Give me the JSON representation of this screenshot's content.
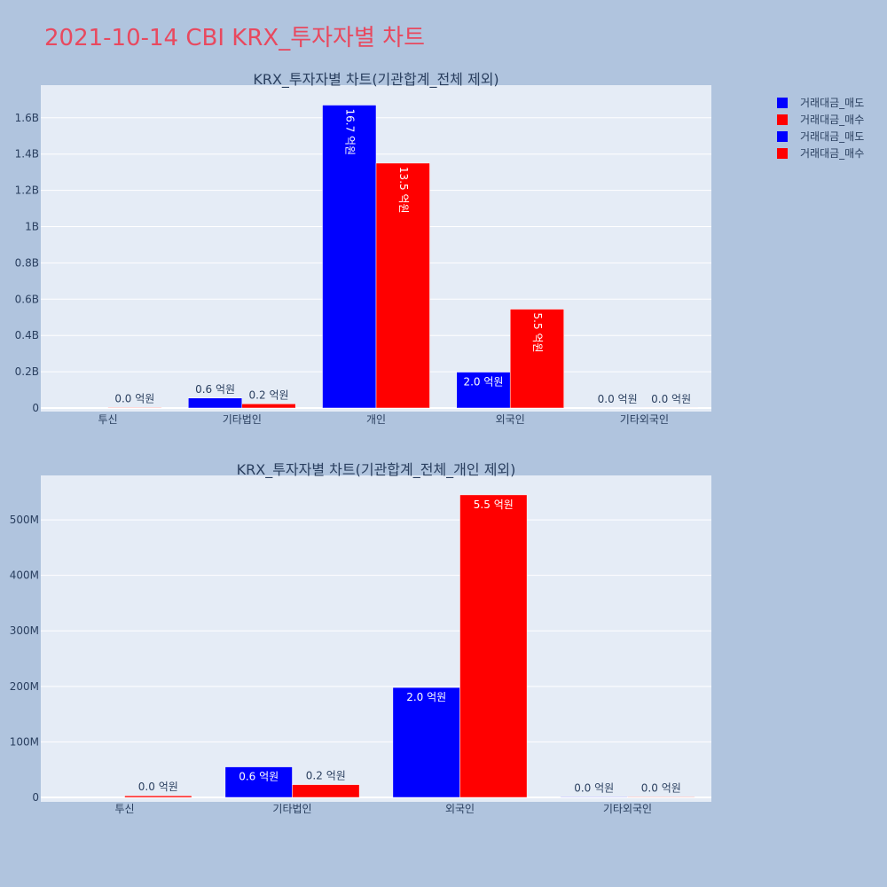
{
  "title": "2021-10-14 CBI KRX_투자자별 차트",
  "colors": {
    "sell": "#0000ff",
    "buy": "#ff0000",
    "title": "#e8495f",
    "plot_bg": "#e5ecf6"
  },
  "legend": [
    {
      "label": "거래대금_매도",
      "color": "#0000ff"
    },
    {
      "label": "거래대금_매수",
      "color": "#ff0000"
    },
    {
      "label": "거래대금_매도",
      "color": "#0000ff"
    },
    {
      "label": "거래대금_매수",
      "color": "#ff0000"
    }
  ],
  "chart_data": [
    {
      "type": "bar",
      "title": "KRX_투자자별 차트(기관합계_전체 제외)",
      "categories": [
        "투신",
        "기타법인",
        "개인",
        "외국인",
        "기타외국인"
      ],
      "series": [
        {
          "name": "거래대금_매도",
          "color": "#0000ff",
          "values": [
            0,
            55000000,
            1670000000,
            198000000,
            1000000
          ],
          "labels": [
            "",
            "0.6 억원",
            "16.7 억원",
            "2.0 억원",
            "0.0 억원"
          ]
        },
        {
          "name": "거래대금_매수",
          "color": "#ff0000",
          "values": [
            3000000,
            23000000,
            1350000000,
            545000000,
            1000000
          ],
          "labels": [
            "0.0 억원",
            "0.2 억원",
            "13.5 억원",
            "5.5 억원",
            "0.0 억원"
          ]
        }
      ],
      "yticks": [
        "0",
        "0.2B",
        "0.4B",
        "0.6B",
        "0.8B",
        "1B",
        "1.2B",
        "1.4B",
        "1.6B"
      ],
      "ylim": [
        0,
        1780000000
      ]
    },
    {
      "type": "bar",
      "title": "KRX_투자자별 차트(기관합계_전체_개인 제외)",
      "categories": [
        "투신",
        "기타법인",
        "외국인",
        "기타외국인"
      ],
      "series": [
        {
          "name": "거래대금_매도",
          "color": "#0000ff",
          "values": [
            0,
            55000000,
            198000000,
            1000000
          ],
          "labels": [
            "",
            "0.6 억원",
            "2.0 억원",
            "0.0 억원"
          ]
        },
        {
          "name": "거래대금_매수",
          "color": "#ff0000",
          "values": [
            3000000,
            23000000,
            545000000,
            1000000
          ],
          "labels": [
            "0.0 억원",
            "0.2 억원",
            "5.5 억원",
            "0.0 억원"
          ]
        }
      ],
      "yticks": [
        "0",
        "100M",
        "200M",
        "300M",
        "400M",
        "500M"
      ],
      "ylim": [
        0,
        580000000
      ]
    }
  ]
}
